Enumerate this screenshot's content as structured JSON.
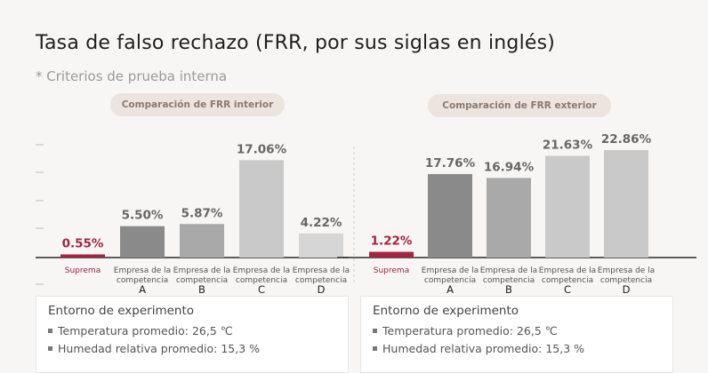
{
  "title": "Tasa de falso rechazo (FRR, por sus siglas en inglés)",
  "subtitle": "* Criterios de prueba interna",
  "colors": {
    "accent": "#a3253f",
    "bar_dark": "#8a8a8a",
    "bar_mid": "#a9a9a9",
    "bar_light": "#c9c9c9",
    "bar_lighter": "#d6d6d6",
    "label_gray": "#666666"
  },
  "chart_data": [
    {
      "type": "bar",
      "title": "Comparación de FRR interior",
      "categories": [
        "Suprema",
        "Empresa de la competencia A",
        "Empresa de la competencia B",
        "Empresa de la competencia C",
        "Empresa de la competencia D"
      ],
      "values": [
        0.55,
        5.5,
        5.87,
        17.06,
        4.22
      ],
      "value_labels": [
        "0.55%",
        "5.50%",
        "5.87%",
        "17.06%",
        "4.22%"
      ],
      "ylim": [
        0,
        21
      ]
    },
    {
      "type": "bar",
      "title": "Comparación de FRR exterior",
      "categories": [
        "Suprema",
        "Empresa de la competencia A",
        "Empresa de la competencia B",
        "Empresa de la competencia C",
        "Empresa de la competencia D"
      ],
      "values": [
        1.22,
        17.76,
        16.94,
        21.63,
        22.86
      ],
      "value_labels": [
        "1.22%",
        "17.76%",
        "16.94%",
        "21.63%",
        "22.86%"
      ],
      "ylim": [
        0,
        25.5
      ]
    }
  ],
  "category_lines": [
    [
      "Suprema"
    ],
    [
      "Empresa de la",
      "competencia",
      "A"
    ],
    [
      "Empresa de la",
      "competencia",
      "B"
    ],
    [
      "Empresa de la",
      "competencia",
      "C"
    ],
    [
      "Empresa de la",
      "competencia",
      "D"
    ]
  ],
  "environment": {
    "title": "Entorno de experimento",
    "items": [
      "Temperatura promedio: 26,5 ℃",
      "Humedad relativa promedio: 15,3 %"
    ]
  }
}
